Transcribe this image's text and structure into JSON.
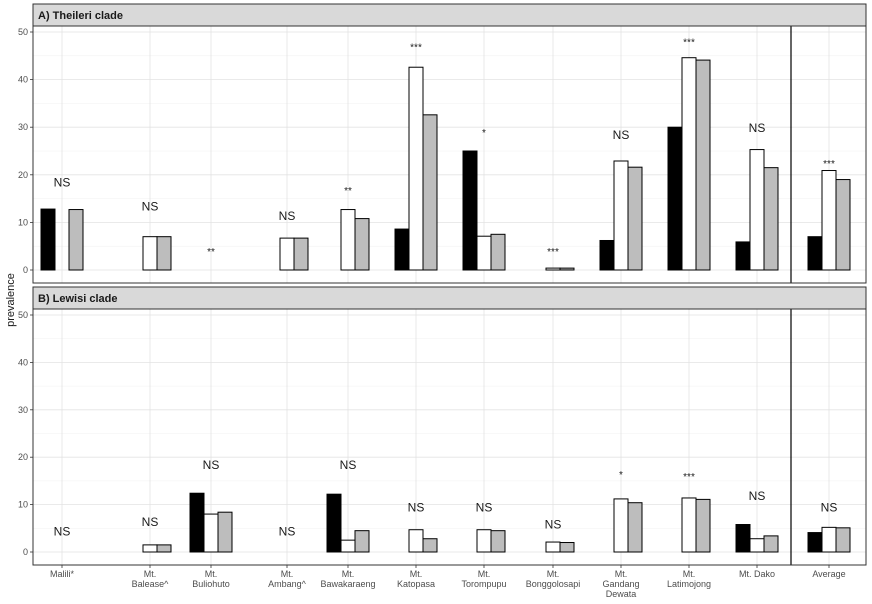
{
  "chart_data": {
    "type": "bar",
    "ylabel": "prevalence",
    "ylim": [
      0,
      52
    ],
    "yticks": [
      0,
      10,
      20,
      30,
      40,
      50
    ],
    "grid": true,
    "legend": "none",
    "categories": [
      [
        "Malili*"
      ],
      [
        "Mt.",
        "Balease^"
      ],
      [
        "Mt.",
        "Buliohuto"
      ],
      [
        "Mt.",
        "Ambang^"
      ],
      [
        "Mt.",
        "Bawakaraeng"
      ],
      [
        "Mt.",
        "Katopasa"
      ],
      [
        "Mt.",
        "Torompupu"
      ],
      [
        "Mt.",
        "Bonggolosapi"
      ],
      [
        "Mt.",
        "Gandang",
        "Dewata"
      ],
      [
        "Mt.",
        "Latimojong"
      ],
      [
        "Mt. Dako"
      ],
      [
        "Average"
      ]
    ],
    "series_colors": [
      "#000000",
      "#ffffff",
      "#bdbdbd"
    ],
    "panels": [
      {
        "title": "A) Theileri clade",
        "series": [
          {
            "values": [
              12.8,
              null,
              0,
              null,
              0,
              8.6,
              25.0,
              0,
              6.2,
              30.0,
              5.9,
              7.0
            ]
          },
          {
            "values": [
              null,
              7.0,
              0,
              6.7,
              12.7,
              42.6,
              7.1,
              0.4,
              22.9,
              44.6,
              25.3,
              20.9
            ]
          },
          {
            "values": [
              12.7,
              7.0,
              0,
              6.7,
              10.8,
              32.6,
              7.5,
              0.4,
              21.6,
              44.1,
              21.5,
              19.0
            ]
          }
        ],
        "significance": [
          "NS",
          "NS",
          "**",
          "NS",
          "**",
          "***",
          "*",
          "***",
          "NS",
          "***",
          "NS",
          "***"
        ],
        "sig_y": [
          17.5,
          12.5,
          4.0,
          10.5,
          16.8,
          47.0,
          29.0,
          4.0,
          27.5,
          48.0,
          29.0,
          22.5
        ]
      },
      {
        "title": "B) Lewisi clade",
        "series": [
          {
            "values": [
              null,
              null,
              12.4,
              null,
              12.2,
              0,
              0,
              0,
              0,
              0,
              5.8,
              4.1
            ]
          },
          {
            "values": [
              null,
              1.5,
              8.0,
              0,
              2.5,
              4.7,
              4.7,
              2.1,
              11.2,
              11.4,
              2.8,
              5.2
            ]
          },
          {
            "values": [
              null,
              1.5,
              8.4,
              0,
              4.5,
              2.8,
              4.5,
              2.0,
              10.4,
              11.1,
              3.4,
              5.1
            ]
          }
        ],
        "significance": [
          "NS",
          "NS",
          "NS",
          "NS",
          "NS",
          "NS",
          "NS",
          "NS",
          "*",
          "***",
          "NS",
          "NS"
        ],
        "sig_y": [
          3.5,
          5.5,
          17.5,
          3.5,
          17.5,
          8.5,
          8.5,
          5.0,
          16.5,
          16.0,
          11.0,
          8.5
        ]
      }
    ]
  }
}
